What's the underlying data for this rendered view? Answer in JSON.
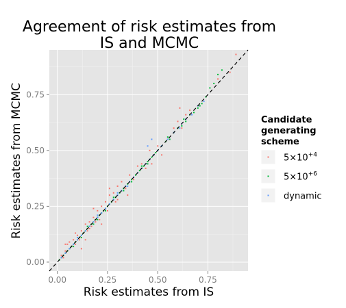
{
  "chart_data": {
    "type": "scatter",
    "title": "Agreement of risk estimates from IS and MCMC",
    "title_lines": [
      "Agreement of risk estimates from",
      "IS and MCMC"
    ],
    "xlabel": "Risk estimates from IS",
    "ylabel": "Risk estimates from MCMC",
    "xlim": [
      -0.04,
      0.95
    ],
    "ylim": [
      -0.04,
      0.95
    ],
    "x_ticks": [
      0.0,
      0.25,
      0.5,
      0.75
    ],
    "x_tick_labels": [
      "0.00",
      "0.25",
      "0.50",
      "0.75"
    ],
    "y_ticks": [
      0.0,
      0.25,
      0.5,
      0.75
    ],
    "y_tick_labels": [
      "0.00",
      "0.25",
      "0.50",
      "0.75"
    ],
    "grid": true,
    "reference_line": {
      "type": "y=x",
      "style": "dashed",
      "color": "#000000"
    },
    "legend": {
      "title_lines": [
        "Candidate",
        "generating",
        "scheme"
      ],
      "position": "right",
      "entries": [
        {
          "name": "5x10^+4",
          "base": "5×10",
          "sup": "+4",
          "color": "#F8766D"
        },
        {
          "name": "5x10^+6",
          "base": "5×10",
          "sup": "+6",
          "color": "#00BA38"
        },
        {
          "name": "dynamic",
          "base": "dynamic",
          "sup": "",
          "color": "#619CFF"
        }
      ]
    },
    "series": [
      {
        "name": "5x10^+4",
        "color": "#F8766D",
        "points": [
          [
            0.02,
            0.03
          ],
          [
            0.04,
            0.05
          ],
          [
            0.05,
            0.08
          ],
          [
            0.07,
            0.07
          ],
          [
            0.08,
            0.1
          ],
          [
            0.09,
            0.08
          ],
          [
            0.1,
            0.12
          ],
          [
            0.11,
            0.1
          ],
          [
            0.12,
            0.14
          ],
          [
            0.13,
            0.13
          ],
          [
            0.14,
            0.17
          ],
          [
            0.15,
            0.14
          ],
          [
            0.16,
            0.18
          ],
          [
            0.17,
            0.16
          ],
          [
            0.18,
            0.2
          ],
          [
            0.19,
            0.18
          ],
          [
            0.2,
            0.23
          ],
          [
            0.21,
            0.19
          ],
          [
            0.22,
            0.25
          ],
          [
            0.24,
            0.27
          ],
          [
            0.25,
            0.23
          ],
          [
            0.26,
            0.3
          ],
          [
            0.28,
            0.31
          ],
          [
            0.29,
            0.27
          ],
          [
            0.3,
            0.34
          ],
          [
            0.32,
            0.36
          ],
          [
            0.34,
            0.33
          ],
          [
            0.36,
            0.39
          ],
          [
            0.38,
            0.37
          ],
          [
            0.4,
            0.43
          ],
          [
            0.42,
            0.44
          ],
          [
            0.44,
            0.42
          ],
          [
            0.46,
            0.5
          ],
          [
            0.5,
            0.52
          ],
          [
            0.52,
            0.48
          ],
          [
            0.55,
            0.55
          ],
          [
            0.58,
            0.6
          ],
          [
            0.6,
            0.63
          ],
          [
            0.62,
            0.6
          ],
          [
            0.64,
            0.66
          ],
          [
            0.66,
            0.68
          ],
          [
            0.7,
            0.7
          ],
          [
            0.74,
            0.74
          ],
          [
            0.8,
            0.82
          ],
          [
            0.86,
            0.85
          ],
          [
            0.89,
            0.93
          ],
          [
            0.61,
            0.69
          ],
          [
            0.12,
            0.06
          ],
          [
            0.04,
            0.08
          ],
          [
            0.18,
            0.24
          ],
          [
            0.26,
            0.33
          ],
          [
            0.35,
            0.3
          ],
          [
            0.47,
            0.44
          ],
          [
            0.3,
            0.28
          ],
          [
            0.22,
            0.17
          ],
          [
            0.14,
            0.1
          ],
          [
            0.09,
            0.13
          ],
          [
            0.06,
            0.09
          ],
          [
            0.03,
            0.02
          ],
          [
            0.16,
            0.15
          ]
        ]
      },
      {
        "name": "5x10^+6",
        "color": "#00BA38",
        "points": [
          [
            0.01,
            0.01
          ],
          [
            0.02,
            0.02
          ],
          [
            0.03,
            0.03
          ],
          [
            0.04,
            0.04
          ],
          [
            0.05,
            0.05
          ],
          [
            0.06,
            0.06
          ],
          [
            0.07,
            0.07
          ],
          [
            0.08,
            0.08
          ],
          [
            0.09,
            0.09
          ],
          [
            0.1,
            0.1
          ],
          [
            0.11,
            0.11
          ],
          [
            0.12,
            0.12
          ],
          [
            0.13,
            0.13
          ],
          [
            0.14,
            0.14
          ],
          [
            0.15,
            0.15
          ],
          [
            0.16,
            0.16
          ],
          [
            0.17,
            0.17
          ],
          [
            0.18,
            0.18
          ],
          [
            0.19,
            0.19
          ],
          [
            0.2,
            0.2
          ],
          [
            0.21,
            0.21
          ],
          [
            0.22,
            0.22
          ],
          [
            0.23,
            0.23
          ],
          [
            0.24,
            0.24
          ],
          [
            0.25,
            0.25
          ],
          [
            0.26,
            0.26
          ],
          [
            0.27,
            0.27
          ],
          [
            0.28,
            0.28
          ],
          [
            0.29,
            0.29
          ],
          [
            0.3,
            0.3
          ],
          [
            0.31,
            0.31
          ],
          [
            0.32,
            0.32
          ],
          [
            0.33,
            0.33
          ],
          [
            0.34,
            0.34
          ],
          [
            0.35,
            0.35
          ],
          [
            0.36,
            0.36
          ],
          [
            0.37,
            0.37
          ],
          [
            0.38,
            0.38
          ],
          [
            0.39,
            0.39
          ],
          [
            0.4,
            0.4
          ],
          [
            0.41,
            0.41
          ],
          [
            0.42,
            0.42
          ],
          [
            0.43,
            0.43
          ],
          [
            0.44,
            0.44
          ],
          [
            0.45,
            0.45
          ],
          [
            0.46,
            0.46
          ],
          [
            0.47,
            0.47
          ],
          [
            0.48,
            0.48
          ],
          [
            0.49,
            0.49
          ],
          [
            0.5,
            0.5
          ],
          [
            0.52,
            0.52
          ],
          [
            0.54,
            0.54
          ],
          [
            0.56,
            0.55
          ],
          [
            0.58,
            0.58
          ],
          [
            0.6,
            0.6
          ],
          [
            0.62,
            0.61
          ],
          [
            0.64,
            0.63
          ],
          [
            0.66,
            0.66
          ],
          [
            0.68,
            0.67
          ],
          [
            0.7,
            0.69
          ],
          [
            0.72,
            0.71
          ],
          [
            0.74,
            0.74
          ],
          [
            0.76,
            0.78
          ],
          [
            0.78,
            0.8
          ],
          [
            0.8,
            0.84
          ],
          [
            0.82,
            0.86
          ],
          [
            0.12,
            0.11
          ],
          [
            0.18,
            0.17
          ],
          [
            0.24,
            0.23
          ],
          [
            0.33,
            0.32
          ],
          [
            0.45,
            0.44
          ],
          [
            0.55,
            0.56
          ],
          [
            0.63,
            0.64
          ],
          [
            0.71,
            0.7
          ],
          [
            0.08,
            0.07
          ],
          [
            0.15,
            0.16
          ],
          [
            0.2,
            0.19
          ],
          [
            0.28,
            0.29
          ],
          [
            0.37,
            0.36
          ],
          [
            0.42,
            0.43
          ]
        ]
      },
      {
        "name": "dynamic",
        "color": "#619CFF",
        "points": [
          [
            0.02,
            0.02
          ],
          [
            0.04,
            0.04
          ],
          [
            0.06,
            0.06
          ],
          [
            0.08,
            0.08
          ],
          [
            0.1,
            0.1
          ],
          [
            0.12,
            0.12
          ],
          [
            0.14,
            0.14
          ],
          [
            0.16,
            0.16
          ],
          [
            0.18,
            0.18
          ],
          [
            0.2,
            0.2
          ],
          [
            0.22,
            0.22
          ],
          [
            0.24,
            0.24
          ],
          [
            0.26,
            0.26
          ],
          [
            0.28,
            0.28
          ],
          [
            0.3,
            0.3
          ],
          [
            0.32,
            0.32
          ],
          [
            0.34,
            0.34
          ],
          [
            0.36,
            0.36
          ],
          [
            0.38,
            0.38
          ],
          [
            0.4,
            0.4
          ],
          [
            0.42,
            0.42
          ],
          [
            0.44,
            0.44
          ],
          [
            0.46,
            0.46
          ],
          [
            0.48,
            0.48
          ],
          [
            0.5,
            0.5
          ],
          [
            0.52,
            0.52
          ],
          [
            0.55,
            0.55
          ],
          [
            0.58,
            0.58
          ],
          [
            0.61,
            0.6
          ],
          [
            0.64,
            0.64
          ],
          [
            0.67,
            0.66
          ],
          [
            0.7,
            0.7
          ],
          [
            0.73,
            0.72
          ],
          [
            0.45,
            0.52
          ],
          [
            0.47,
            0.55
          ],
          [
            0.3,
            0.31
          ],
          [
            0.2,
            0.21
          ],
          [
            0.1,
            0.11
          ],
          [
            0.35,
            0.34
          ],
          [
            0.62,
            0.62
          ]
        ]
      }
    ]
  }
}
